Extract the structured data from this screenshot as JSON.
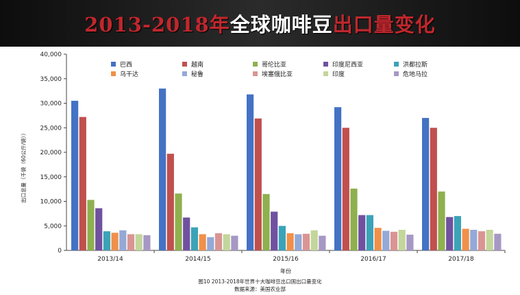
{
  "banner": {
    "title_years": "2013-2018",
    "title_year_char": "年",
    "title_mid": "全球咖啡豆",
    "title_tail": "出口量变化",
    "colors": {
      "red": "#c0272d",
      "white": "#ffffff",
      "background": "#1a1a1a"
    }
  },
  "caption": {
    "figure": "图10 2013-2018年世界十大咖啡豆出口国出口量变化",
    "source": "数据来源：美国农业部"
  },
  "chart_data": {
    "type": "bar",
    "title": "",
    "xlabel": "年份",
    "ylabel": "出口总量（千袋（60公斤/袋））",
    "ylim": [
      0,
      40000
    ],
    "yticks": [
      "0",
      "5,000",
      "10,000",
      "15,000",
      "20,000",
      "25,000",
      "30,000",
      "35,000",
      "40,000"
    ],
    "grid": false,
    "legend_position": "top",
    "categories": [
      "2013/14",
      "2014/15",
      "2015/16",
      "2016/17",
      "2017/18"
    ],
    "series": [
      {
        "name": "巴西",
        "color": "#4472c4",
        "values": [
          30500,
          33000,
          31800,
          29200,
          27000
        ]
      },
      {
        "name": "越南",
        "color": "#c0504d",
        "values": [
          27200,
          19700,
          26900,
          25000,
          25000
        ]
      },
      {
        "name": "哥伦比亚",
        "color": "#8fb04e",
        "values": [
          10300,
          11600,
          11500,
          12600,
          12000
        ]
      },
      {
        "name": "印度尼西亚",
        "color": "#7051a0",
        "values": [
          8600,
          6700,
          7900,
          7200,
          6800
        ]
      },
      {
        "name": "洪都拉斯",
        "color": "#3ba3b8",
        "values": [
          3900,
          4700,
          5000,
          7200,
          7000
        ]
      },
      {
        "name": "乌干达",
        "color": "#f0904a",
        "values": [
          3600,
          3300,
          3500,
          4600,
          4400
        ]
      },
      {
        "name": "秘鲁",
        "color": "#94a9d6",
        "values": [
          4100,
          2700,
          3300,
          4000,
          4200
        ]
      },
      {
        "name": "埃塞俄比亚",
        "color": "#d99593",
        "values": [
          3300,
          3500,
          3400,
          3800,
          3900
        ]
      },
      {
        "name": "印度",
        "color": "#c3d69b",
        "values": [
          3300,
          3300,
          4100,
          4200,
          4200
        ]
      },
      {
        "name": "危地马拉",
        "color": "#a698c4",
        "values": [
          3100,
          3000,
          3000,
          3200,
          3400
        ]
      }
    ]
  }
}
